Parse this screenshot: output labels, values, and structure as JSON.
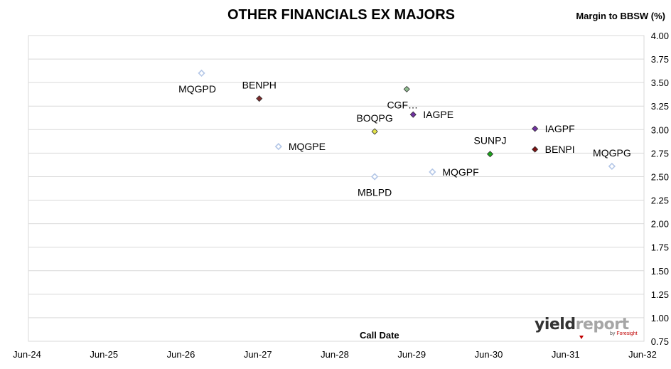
{
  "chart_data": {
    "type": "scatter",
    "title": "OTHER FINANCIALS EX MAJORS",
    "xlabel": "Call Date",
    "ylabel": "Margin to BBSW (%)",
    "x_ticks": [
      "Jun-24",
      "Jun-25",
      "Jun-26",
      "Jun-27",
      "Jun-28",
      "Jun-29",
      "Jun-30",
      "Jun-31",
      "Jun-32"
    ],
    "y_ticks": [
      "0.75",
      "1.00",
      "1.25",
      "1.50",
      "1.75",
      "2.00",
      "2.25",
      "2.50",
      "2.75",
      "3.00",
      "3.25",
      "3.50",
      "3.75",
      "4.00"
    ],
    "ylim": [
      0.75,
      4.0
    ],
    "xlim": [
      "2024-06",
      "2032-06"
    ],
    "grid": "horizontal",
    "legend": "none",
    "points": [
      {
        "label": "MQGPD",
        "x": "2026-09",
        "y": 3.6,
        "color": "#b4c7e7",
        "filled": false,
        "label_pos": "below-left"
      },
      {
        "label": "BENPH",
        "x": "2027-06",
        "y": 3.33,
        "color": "#7b2c2c",
        "filled": true,
        "label_pos": "above"
      },
      {
        "label": "MQGPE",
        "x": "2027-09",
        "y": 2.82,
        "color": "#b4c7e7",
        "filled": false,
        "label_pos": "right"
      },
      {
        "label": "BOQPG",
        "x": "2028-12",
        "y": 2.98,
        "color": "#e3e34a",
        "filled": true,
        "label_pos": "above"
      },
      {
        "label": "MBLPD",
        "x": "2028-12",
        "y": 2.5,
        "color": "#b4c7e7",
        "filled": false,
        "label_pos": "below"
      },
      {
        "label": "CGF…",
        "x": "2029-05",
        "y": 3.43,
        "color": "#8fbc8f",
        "filled": true,
        "label_pos": "below-left"
      },
      {
        "label": "IAGPE",
        "x": "2029-06",
        "y": 3.16,
        "color": "#7030a0",
        "filled": true,
        "label_pos": "right"
      },
      {
        "label": "MQGPF",
        "x": "2029-09",
        "y": 2.55,
        "color": "#b4c7e7",
        "filled": false,
        "label_pos": "right"
      },
      {
        "label": "SUNPJ",
        "x": "2030-06",
        "y": 2.74,
        "color": "#1aa31a",
        "filled": true,
        "label_pos": "above"
      },
      {
        "label": "IAGPF",
        "x": "2031-01",
        "y": 3.01,
        "color": "#7030a0",
        "filled": true,
        "label_pos": "right"
      },
      {
        "label": "BENPI",
        "x": "2031-01",
        "y": 2.79,
        "color": "#7b1010",
        "filled": true,
        "label_pos": "right"
      },
      {
        "label": "MQGPG",
        "x": "2032-01",
        "y": 2.61,
        "color": "#b4c7e7",
        "filled": false,
        "label_pos": "above"
      }
    ]
  },
  "logo": {
    "yield": "yield",
    "report": "report",
    "by": "by",
    "foresight": "Foresight"
  }
}
